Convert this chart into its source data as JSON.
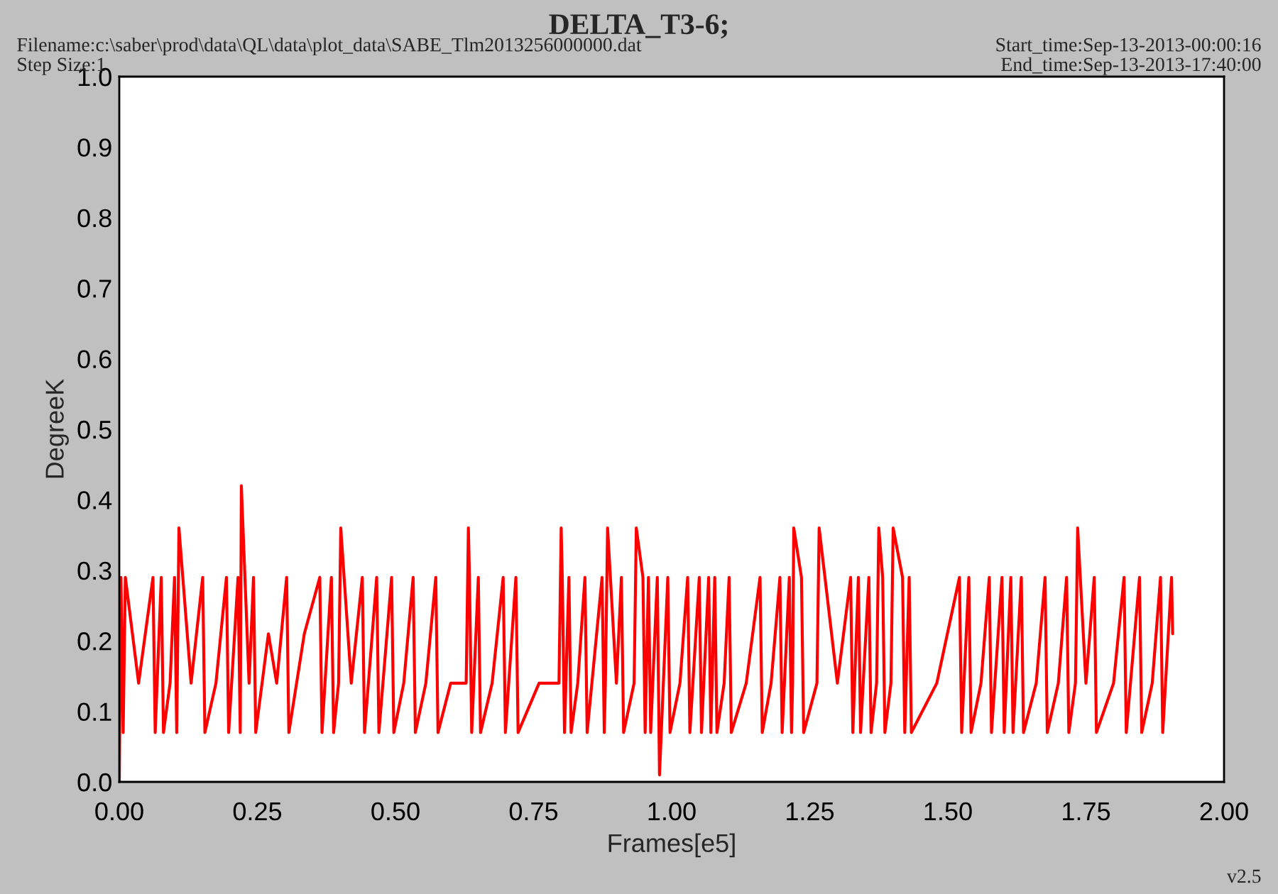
{
  "chart_data": {
    "type": "line",
    "title": "DELTA_T3-6;",
    "xlabel": "Frames[e5]",
    "ylabel": "DegreeK",
    "annotations": [
      "Filename:c:\\saber\\prod\\data\\QL\\data\\plot_data\\SABE_Tlm2013256000000.dat",
      "Step Size:1",
      "Start_time:Sep-13-2013-00:00:16",
      "End_time:Sep-13-2013-17:40:00",
      "v2.5"
    ],
    "xlim": [
      0,
      2.0
    ],
    "xticks": [
      {
        "value": 0,
        "label": "0.00"
      },
      {
        "value": 0.25,
        "label": "0.25"
      },
      {
        "value": 0.5,
        "label": "0.50"
      },
      {
        "value": 0.75,
        "label": "0.75"
      },
      {
        "value": 1.0,
        "label": "1.00"
      },
      {
        "value": 1.25,
        "label": "1.25"
      },
      {
        "value": 1.5,
        "label": "1.50"
      },
      {
        "value": 1.75,
        "label": "1.75"
      },
      {
        "value": 2.0,
        "label": "2.00"
      }
    ],
    "ylim": [
      0,
      1.0
    ],
    "yticks": [
      {
        "value": 0,
        "label": "0.0"
      },
      0.1,
      0.2,
      0.3,
      0.4,
      0.5,
      0.6,
      0.7,
      0.8,
      0.9,
      {
        "value": 1.0,
        "label": "1.0"
      }
    ],
    "grid": false,
    "line_style": "solid",
    "marker": "none",
    "series": [
      {
        "color": "#ff0000",
        "x": [
          0.0,
          0.003,
          0.007,
          0.011,
          0.035,
          0.061,
          0.065,
          0.076,
          0.08,
          0.092,
          0.1,
          0.104,
          0.108,
          0.13,
          0.151,
          0.155,
          0.175,
          0.194,
          0.198,
          0.215,
          0.219,
          0.221,
          0.235,
          0.243,
          0.247,
          0.27,
          0.285,
          0.303,
          0.307,
          0.335,
          0.363,
          0.367,
          0.384,
          0.388,
          0.397,
          0.401,
          0.42,
          0.44,
          0.444,
          0.466,
          0.47,
          0.493,
          0.497,
          0.515,
          0.532,
          0.536,
          0.555,
          0.573,
          0.577,
          0.6,
          0.628,
          0.632,
          0.634,
          0.638,
          0.65,
          0.654,
          0.675,
          0.695,
          0.699,
          0.718,
          0.722,
          0.76,
          0.796,
          0.8,
          0.802,
          0.806,
          0.814,
          0.818,
          0.83,
          0.843,
          0.847,
          0.874,
          0.878,
          0.88,
          0.884,
          0.9,
          0.909,
          0.913,
          0.932,
          0.936,
          0.948,
          0.952,
          0.958,
          0.962,
          0.974,
          0.978,
          0.993,
          0.997,
          1.015,
          1.029,
          1.033,
          1.05,
          1.054,
          1.067,
          1.071,
          1.078,
          1.082,
          1.095,
          1.104,
          1.108,
          1.135,
          1.16,
          1.164,
          1.18,
          1.196,
          1.2,
          1.213,
          1.217,
          1.219,
          1.221,
          1.235,
          1.239,
          1.263,
          1.267,
          1.3,
          1.324,
          1.328,
          1.338,
          1.342,
          1.357,
          1.361,
          1.371,
          1.375,
          1.382,
          1.386,
          1.397,
          1.401,
          1.418,
          1.422,
          1.43,
          1.434,
          1.48,
          1.521,
          1.525,
          1.538,
          1.542,
          1.56,
          1.575,
          1.579,
          1.598,
          1.602,
          1.614,
          1.618,
          1.633,
          1.637,
          1.66,
          1.676,
          1.68,
          1.7,
          1.715,
          1.719,
          1.731,
          1.735,
          1.75,
          1.765,
          1.769,
          1.8,
          1.819,
          1.823,
          1.847,
          1.851,
          1.87,
          1.885,
          1.889,
          1.905,
          1.907
        ],
        "values": [
          0.0,
          0.29,
          0.07,
          0.29,
          0.14,
          0.29,
          0.07,
          0.29,
          0.07,
          0.14,
          0.29,
          0.07,
          0.36,
          0.14,
          0.29,
          0.07,
          0.14,
          0.29,
          0.07,
          0.29,
          0.07,
          0.42,
          0.14,
          0.29,
          0.07,
          0.21,
          0.14,
          0.29,
          0.07,
          0.21,
          0.29,
          0.07,
          0.29,
          0.07,
          0.14,
          0.36,
          0.14,
          0.29,
          0.07,
          0.29,
          0.07,
          0.29,
          0.07,
          0.14,
          0.29,
          0.07,
          0.14,
          0.29,
          0.07,
          0.14,
          0.14,
          0.36,
          0.29,
          0.07,
          0.29,
          0.07,
          0.14,
          0.29,
          0.07,
          0.29,
          0.07,
          0.14,
          0.14,
          0.36,
          0.29,
          0.07,
          0.29,
          0.07,
          0.14,
          0.29,
          0.07,
          0.29,
          0.07,
          0.14,
          0.36,
          0.14,
          0.29,
          0.07,
          0.14,
          0.36,
          0.29,
          0.07,
          0.29,
          0.07,
          0.29,
          0.01,
          0.29,
          0.07,
          0.14,
          0.29,
          0.07,
          0.29,
          0.07,
          0.29,
          0.07,
          0.29,
          0.07,
          0.14,
          0.29,
          0.07,
          0.14,
          0.29,
          0.07,
          0.14,
          0.29,
          0.07,
          0.29,
          0.07,
          0.14,
          0.36,
          0.29,
          0.07,
          0.14,
          0.36,
          0.14,
          0.29,
          0.07,
          0.29,
          0.07,
          0.29,
          0.07,
          0.14,
          0.36,
          0.29,
          0.07,
          0.14,
          0.36,
          0.29,
          0.07,
          0.29,
          0.07,
          0.14,
          0.29,
          0.07,
          0.29,
          0.07,
          0.14,
          0.29,
          0.07,
          0.29,
          0.07,
          0.29,
          0.07,
          0.29,
          0.07,
          0.14,
          0.29,
          0.07,
          0.14,
          0.29,
          0.07,
          0.14,
          0.36,
          0.14,
          0.29,
          0.07,
          0.14,
          0.29,
          0.07,
          0.29,
          0.07,
          0.14,
          0.29,
          0.07,
          0.29,
          0.21
        ]
      }
    ]
  }
}
